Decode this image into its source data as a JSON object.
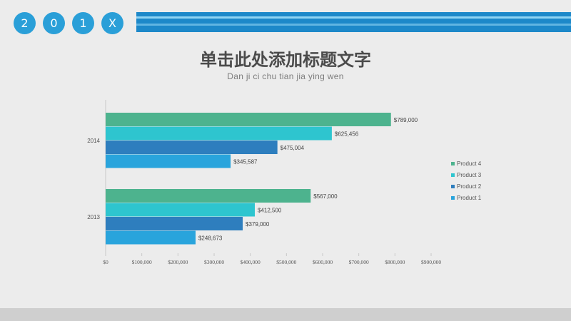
{
  "header": {
    "year_chars": [
      "2",
      "0",
      "1",
      "X"
    ],
    "title": "单击此处添加标题文字",
    "subtitle": "Dan ji ci chu tian jia ying wen"
  },
  "colors": {
    "accent": "#2a9fd8",
    "stripe": "#1d88c9",
    "product4": "#4db38e",
    "product3": "#2ec5cf",
    "product2": "#2e7ebe",
    "product1": "#29a4dc"
  },
  "chart_data": {
    "type": "bar",
    "orientation": "horizontal",
    "categories": [
      "2014",
      "2013"
    ],
    "series": [
      {
        "name": "Product 4",
        "values": [
          789000,
          567000
        ],
        "labels": [
          "$789,000",
          "$567,000"
        ]
      },
      {
        "name": "Product 3",
        "values": [
          625456,
          412500
        ],
        "labels": [
          "$625,456",
          "$412,500"
        ]
      },
      {
        "name": "Product 2",
        "values": [
          475004,
          379000
        ],
        "labels": [
          "$475,004",
          "$379,000"
        ]
      },
      {
        "name": "Product 1",
        "values": [
          345587,
          248673
        ],
        "labels": [
          "$345,587",
          "$248,673"
        ]
      }
    ],
    "x_ticks": [
      0,
      100000,
      200000,
      300000,
      400000,
      500000,
      600000,
      700000,
      800000,
      900000
    ],
    "x_tick_labels": [
      "$0",
      "$100,000",
      "$200,000",
      "$300,000",
      "$400,000",
      "$500,000",
      "$600,000",
      "$700,000",
      "$800,000",
      "$900,000"
    ],
    "xlim": [
      0,
      900000
    ],
    "legend": [
      "Product 4",
      "Product 3",
      "Product 2",
      "Product 1"
    ],
    "legend_position": "right",
    "grid": false
  }
}
